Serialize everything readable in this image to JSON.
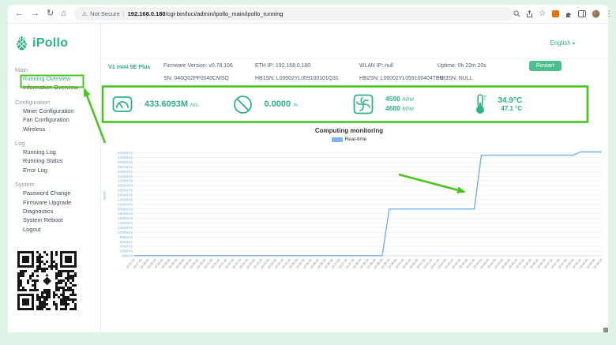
{
  "browser": {
    "security_label": "Not Secure",
    "separator": "|",
    "url_host": "192.168.0.180",
    "url_path": "/cgi-bin/luci/admin/ipollo_main/ipollo_running",
    "back": "←",
    "forward": "→",
    "reload": "↻",
    "home": "⌂",
    "warning": "⚠",
    "star": "☆",
    "menu": "⋮"
  },
  "sidebar": {
    "logo_text": "iPollo",
    "sections": [
      {
        "label": "Main",
        "items": [
          {
            "label": "Running Overview"
          },
          {
            "label": "Information Overview"
          }
        ]
      },
      {
        "label": "Configuration",
        "items": [
          {
            "label": "Miner Configuration"
          },
          {
            "label": "Fan Configuration"
          },
          {
            "label": "Wireless"
          }
        ]
      },
      {
        "label": "Log",
        "items": [
          {
            "label": "Running Log"
          },
          {
            "label": "Running Status"
          },
          {
            "label": "Error Log"
          }
        ]
      },
      {
        "label": "System",
        "items": [
          {
            "label": "Password Change"
          },
          {
            "label": "Firmware Upgrade"
          },
          {
            "label": "Diagnostics"
          },
          {
            "label": "System Reboot"
          },
          {
            "label": "Logout"
          }
        ]
      }
    ]
  },
  "header": {
    "language": "English",
    "caret": "▾"
  },
  "device_info": {
    "model": "V1 mini 5E Plus",
    "firmware": "Firmware Version: v0.78.106",
    "eth_ip": "ETH IP: 192.168.0.180",
    "wlan_ip": "WLAN IP: null",
    "uptime": "Uptime: 0h 22m 20s",
    "restart_label": "Restart",
    "sn": "SN: 046Q02PF0040CMSQ",
    "hb1sn": "HB1SN: L00002YL059100101Q31",
    "hb2sn": "HB2SN: L00002YL059100404TEU",
    "hb3sn": "HB3SN: NULL"
  },
  "stats": {
    "hashrate": {
      "value": "433.6093M",
      "unit": "H/s"
    },
    "reject": {
      "value": "0.0000",
      "unit": "%"
    },
    "fans": [
      "4590",
      "4680"
    ],
    "fan_unit": "RPM",
    "temps": [
      "34.9°C",
      "47.1 °C"
    ]
  },
  "chart_data": {
    "type": "line",
    "title": "Computing monitoring",
    "ylabel": "MH/S",
    "ylim": [
      0,
      440
    ],
    "ytick_step": 20,
    "ytick_suffix": "MH/s",
    "grid": true,
    "legend_position": "top",
    "series": [
      {
        "name": "Real-time",
        "color": "#7cb5ec",
        "values": [
          1,
          1,
          1,
          1,
          1,
          1,
          1,
          1,
          1,
          1,
          1,
          1,
          1,
          1,
          1,
          1,
          1,
          1,
          1,
          1,
          1,
          1,
          1,
          1,
          1,
          1,
          1,
          1,
          1,
          1,
          1,
          1,
          1,
          1,
          1,
          1,
          200,
          200,
          200,
          200,
          200,
          200,
          200,
          200,
          200,
          200,
          200,
          200,
          200,
          430,
          430,
          430,
          430,
          430,
          430,
          430,
          430,
          430,
          430,
          430,
          430,
          430,
          430,
          444,
          444,
          444,
          444
        ]
      }
    ],
    "categories": [
      "19:27:20",
      "19:27:40",
      "19:28:00",
      "19:28:20",
      "19:28:40",
      "19:29:00",
      "19:29:20",
      "19:29:40",
      "19:30:00",
      "19:30:20",
      "19:30:40",
      "19:31:00",
      "19:31:20",
      "19:31:40",
      "19:32:00",
      "19:32:20",
      "19:32:40",
      "19:33:00",
      "19:33:20",
      "19:33:40",
      "19:34:00",
      "19:34:20",
      "19:34:40",
      "19:35:00",
      "19:35:20",
      "19:35:40",
      "19:36:00",
      "19:36:20",
      "19:36:40",
      "19:37:00",
      "19:37:20",
      "19:37:40",
      "19:38:00",
      "19:38:20",
      "19:38:40",
      "19:39:00",
      "19:39:20",
      "19:39:40",
      "19:40:00",
      "19:40:20",
      "19:40:40",
      "19:41:00",
      "19:41:20",
      "19:41:40",
      "19:42:00",
      "19:42:20",
      "19:42:40",
      "19:43:00",
      "19:43:20",
      "19:43:40",
      "19:44:00",
      "19:44:20",
      "19:44:40",
      "19:45:00",
      "19:45:20",
      "19:45:40",
      "19:46:00",
      "19:46:20",
      "19:46:40",
      "19:47:00",
      "19:47:20",
      "19:47:40",
      "19:48:00",
      "19:48:20",
      "19:48:40",
      "19:49:00",
      "19:49:20"
    ]
  },
  "annotation_color": "#4cc41f"
}
